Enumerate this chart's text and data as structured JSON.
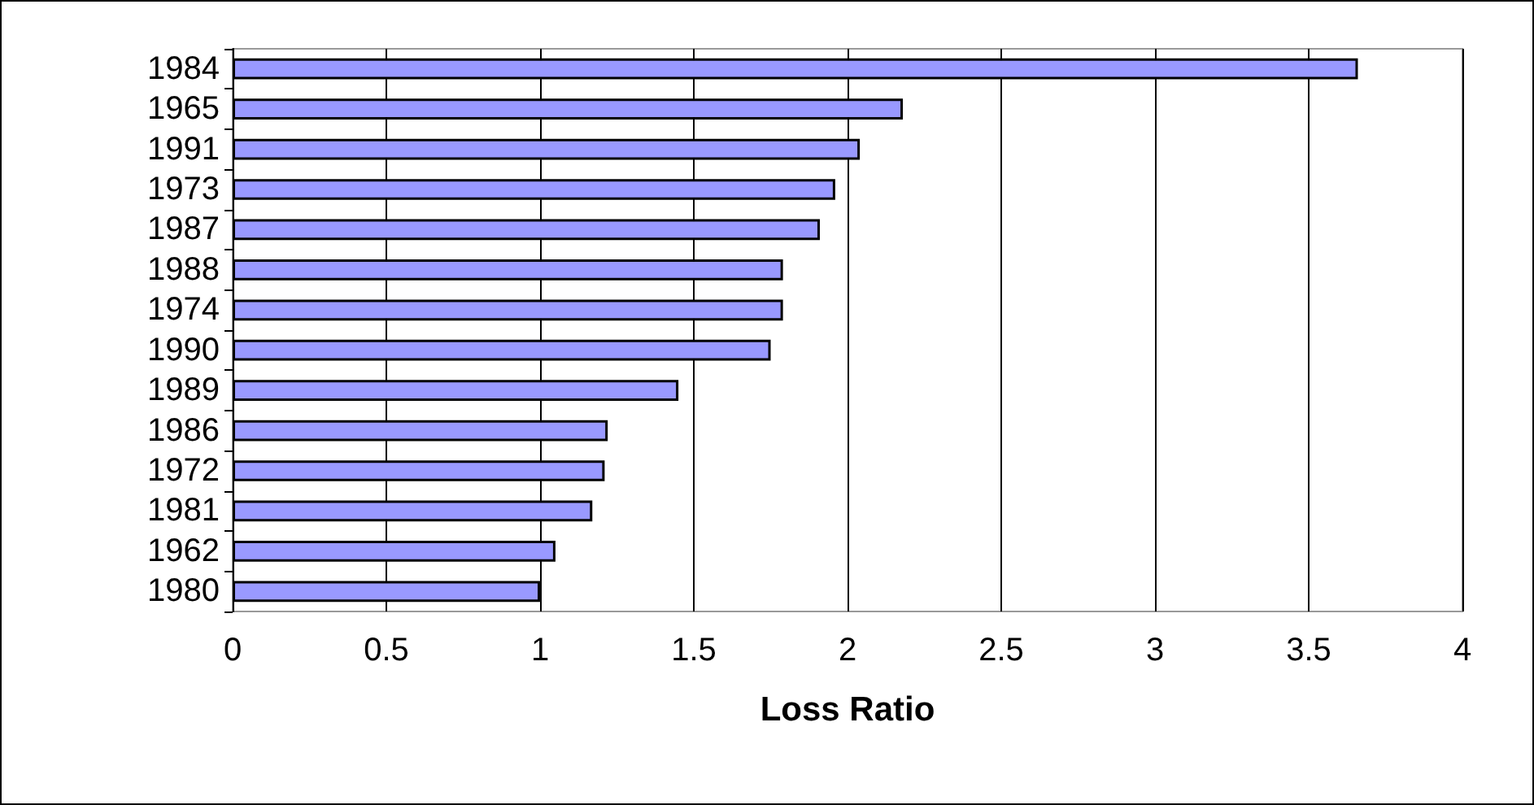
{
  "chart_data": {
    "type": "bar",
    "orientation": "horizontal",
    "xlabel": "Loss Ratio",
    "categories": [
      "1984",
      "1965",
      "1991",
      "1973",
      "1987",
      "1988",
      "1974",
      "1990",
      "1989",
      "1986",
      "1972",
      "1981",
      "1962",
      "1980"
    ],
    "values": [
      3.66,
      2.18,
      2.04,
      1.96,
      1.91,
      1.79,
      1.79,
      1.75,
      1.45,
      1.22,
      1.21,
      1.17,
      1.05,
      1.0
    ],
    "color": "#9999ff",
    "xlim": [
      0,
      4
    ],
    "xticks": [
      0,
      0.5,
      1,
      1.5,
      2,
      2.5,
      3,
      3.5,
      4
    ],
    "grid": "x"
  }
}
